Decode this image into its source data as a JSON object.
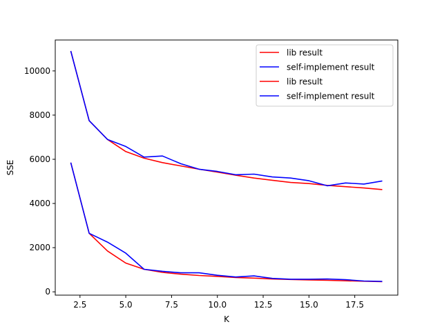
{
  "chart_data": {
    "type": "line",
    "xlabel": "K",
    "ylabel": "SSE",
    "xlim": [
      1.15,
      19.85
    ],
    "ylim": [
      -150,
      11400
    ],
    "xticks": [
      2.5,
      5.0,
      7.5,
      10.0,
      12.5,
      15.0,
      17.5
    ],
    "xtick_labels": [
      "2.5",
      "5.0",
      "7.5",
      "10.0",
      "12.5",
      "15.0",
      "17.5"
    ],
    "yticks": [
      0,
      2000,
      4000,
      6000,
      8000,
      10000
    ],
    "ytick_labels": [
      "0",
      "2000",
      "4000",
      "6000",
      "8000",
      "10000"
    ],
    "grid": false,
    "legend_position": "upper right",
    "x": [
      2,
      3,
      4,
      5,
      6,
      7,
      8,
      9,
      10,
      11,
      12,
      13,
      14,
      15,
      16,
      17,
      18,
      19
    ],
    "series": [
      {
        "name": "lib result",
        "color": "#ff0000",
        "values": [
          10900,
          7750,
          6900,
          6350,
          6050,
          5850,
          5700,
          5550,
          5420,
          5280,
          5150,
          5050,
          4950,
          4900,
          4820,
          4760,
          4700,
          4630
        ]
      },
      {
        "name": "self-implement result",
        "color": "#0000ff",
        "values": [
          10900,
          7750,
          6900,
          6580,
          6100,
          6150,
          5800,
          5550,
          5450,
          5300,
          5330,
          5200,
          5150,
          5030,
          4800,
          4930,
          4880,
          5020
        ]
      },
      {
        "name": "lib result",
        "color": "#ff0000",
        "values": [
          5850,
          2650,
          1850,
          1300,
          1020,
          880,
          800,
          740,
          700,
          650,
          620,
          580,
          560,
          540,
          520,
          500,
          480,
          460
        ]
      },
      {
        "name": "self-implement result",
        "color": "#0000ff",
        "values": [
          5850,
          2650,
          2250,
          1750,
          1020,
          930,
          860,
          860,
          750,
          670,
          720,
          610,
          570,
          570,
          580,
          550,
          490,
          470
        ]
      }
    ]
  }
}
